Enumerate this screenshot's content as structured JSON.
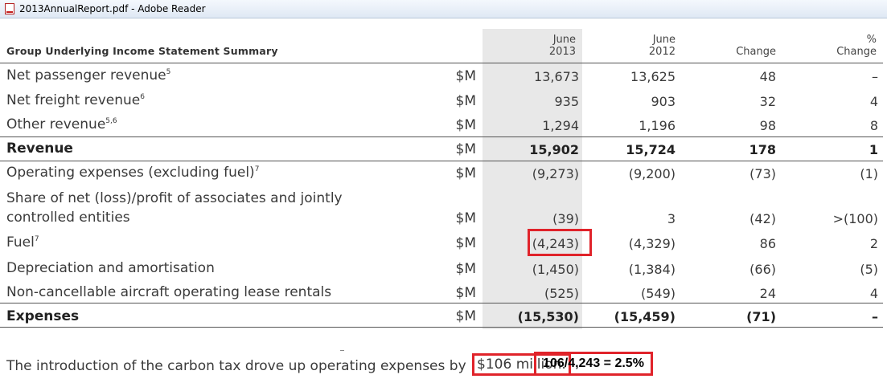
{
  "window": {
    "title": "2013AnnualReport.pdf - Adobe Reader",
    "icon": "pdf-icon"
  },
  "table": {
    "title": "Group Underlying Income Statement Summary",
    "columns": [
      {
        "line1": "June",
        "line2": "2013"
      },
      {
        "line1": "June",
        "line2": "2012"
      },
      {
        "line1": "",
        "line2": "Change"
      },
      {
        "line1": "%",
        "line2": "Change"
      }
    ],
    "rows": [
      {
        "label": "Net passenger revenue",
        "sup": "5",
        "unit": "$M",
        "v1": "13,673",
        "v2": "13,625",
        "v3": "48",
        "v4": "–",
        "bold": false
      },
      {
        "label": "Net freight revenue",
        "sup": "6",
        "unit": "$M",
        "v1": "935",
        "v2": "903",
        "v3": "32",
        "v4": "4",
        "bold": false
      },
      {
        "label": "Other revenue",
        "sup": "5,6",
        "unit": "$M",
        "v1": "1,294",
        "v2": "1,196",
        "v3": "98",
        "v4": "8",
        "bold": false
      },
      {
        "label": "Revenue",
        "sup": "",
        "unit": "$M",
        "v1": "15,902",
        "v2": "15,724",
        "v3": "178",
        "v4": "1",
        "bold": true
      },
      {
        "label": "Operating expenses (excluding fuel)",
        "sup": "7",
        "unit": "$M",
        "v1": "(9,273)",
        "v2": "(9,200)",
        "v3": "(73)",
        "v4": "(1)",
        "bold": false
      },
      {
        "label": "Share of net (loss)/profit of associates and jointly",
        "label2": "controlled entities",
        "sup": "",
        "unit": "$M",
        "v1": "(39)",
        "v2": "3",
        "v3": "(42)",
        "v4": ">(100)",
        "bold": false
      },
      {
        "label": "Fuel",
        "sup": "7",
        "unit": "$M",
        "v1": "(4,243)",
        "v2": "(4,329)",
        "v3": "86",
        "v4": "2",
        "bold": false
      },
      {
        "label": "Depreciation and amortisation",
        "sup": "",
        "unit": "$M",
        "v1": "(1,450)",
        "v2": "(1,384)",
        "v3": "(66)",
        "v4": "(5)",
        "bold": false
      },
      {
        "label": "Non-cancellable aircraft operating lease rentals",
        "sup": "",
        "unit": "$M",
        "v1": "(525)",
        "v2": "(549)",
        "v3": "24",
        "v4": "4",
        "bold": false
      },
      {
        "label": "Expenses",
        "sup": "",
        "unit": "$M",
        "v1": "(15,530)",
        "v2": "(15,459)",
        "v3": "(71)",
        "v4": "–",
        "bold": true
      }
    ]
  },
  "footnote": {
    "text": "The introduction of the carbon tax drove up operating expenses by",
    "amount": "$106 million."
  },
  "calculation": "106/4,243 = 2.5%"
}
